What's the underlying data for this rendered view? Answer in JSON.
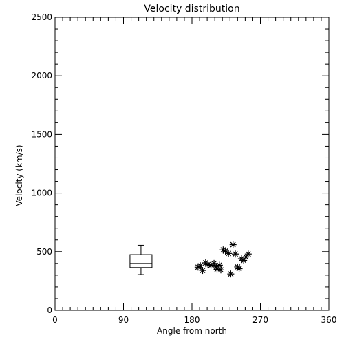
{
  "chart_data": {
    "type": "scatter",
    "title": "Velocity distribution",
    "xlabel": "Angle from north",
    "ylabel": "Velocity (km/s)",
    "xlim": [
      0,
      360
    ],
    "ylim": [
      0,
      2500
    ],
    "xticks": [
      0,
      90,
      180,
      270,
      360
    ],
    "yticks": [
      0,
      500,
      1000,
      1500,
      2000,
      2500
    ],
    "x_minor_step": 10,
    "y_minor_step": 100,
    "grid": false,
    "colors": {
      "foreground": "#000000",
      "background": "#ffffff"
    },
    "boxplot": {
      "x": 113,
      "whisker_low": 305,
      "q1": 365,
      "median": 400,
      "q3": 475,
      "whisker_high": 555
    },
    "points": [
      {
        "x": 188,
        "y": 368
      },
      {
        "x": 191,
        "y": 380
      },
      {
        "x": 194,
        "y": 340
      },
      {
        "x": 198,
        "y": 405
      },
      {
        "x": 201,
        "y": 390
      },
      {
        "x": 205,
        "y": 385
      },
      {
        "x": 209,
        "y": 400
      },
      {
        "x": 212,
        "y": 370
      },
      {
        "x": 213,
        "y": 350
      },
      {
        "x": 216,
        "y": 385
      },
      {
        "x": 218,
        "y": 345
      },
      {
        "x": 221,
        "y": 515
      },
      {
        "x": 224,
        "y": 505
      },
      {
        "x": 228,
        "y": 485
      },
      {
        "x": 231,
        "y": 310
      },
      {
        "x": 234,
        "y": 560
      },
      {
        "x": 237,
        "y": 480
      },
      {
        "x": 240,
        "y": 370
      },
      {
        "x": 242,
        "y": 355
      },
      {
        "x": 245,
        "y": 440
      },
      {
        "x": 248,
        "y": 425
      },
      {
        "x": 251,
        "y": 455
      },
      {
        "x": 254,
        "y": 480
      }
    ]
  }
}
